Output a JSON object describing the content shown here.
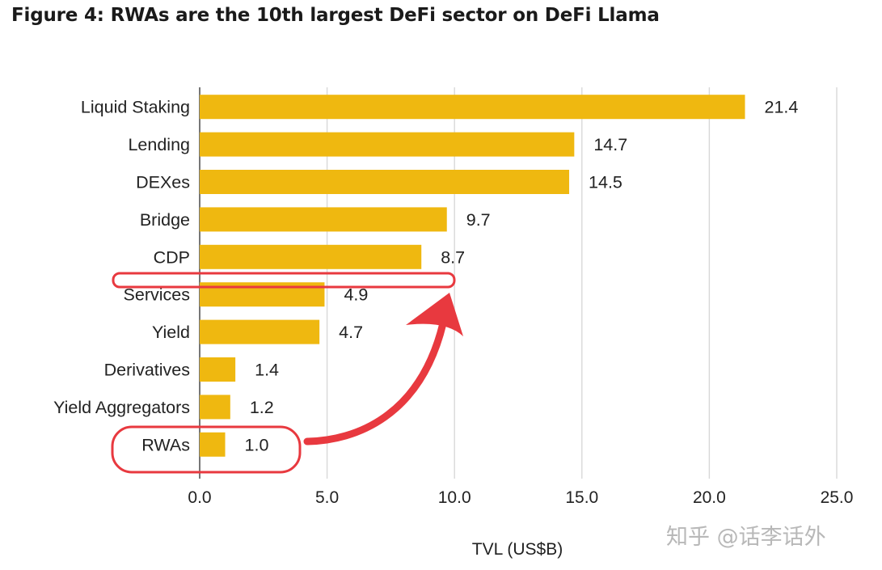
{
  "title": "Figure 4: RWAs are the 10th largest DeFi sector on DeFi Llama",
  "watermark": "知乎 @话李话外",
  "bar_color": "#efb810",
  "highlight_color": "#e8393f",
  "chart_data": {
    "type": "bar",
    "orientation": "horizontal",
    "title": "Figure 4: RWAs are the 10th largest DeFi sector on DeFi Llama",
    "xlabel": "TVL (US$B)",
    "ylabel": "",
    "categories": [
      "Liquid Staking",
      "Lending",
      "DEXes",
      "Bridge",
      "CDP",
      "Services",
      "Yield",
      "Derivatives",
      "Yield Aggregators",
      "RWAs"
    ],
    "values": [
      21.4,
      14.7,
      14.5,
      9.7,
      8.7,
      4.9,
      4.7,
      1.4,
      1.2,
      1.0
    ],
    "value_labels": [
      "21.4",
      "14.7",
      "14.5",
      "9.7",
      "8.7",
      "4.9",
      "4.7",
      "1.4",
      "1.2",
      "1.0"
    ],
    "xlim": [
      0,
      25
    ],
    "xticks": [
      0,
      5,
      10,
      15,
      20,
      25
    ],
    "xtick_labels": [
      "0.0",
      "5.0",
      "10.0",
      "15.0",
      "20.0",
      "25.0"
    ],
    "grid": true,
    "annotations": [
      "RWAs circled in red",
      "red arrow pointing from RWAs to the slot between CDP and Services"
    ]
  }
}
